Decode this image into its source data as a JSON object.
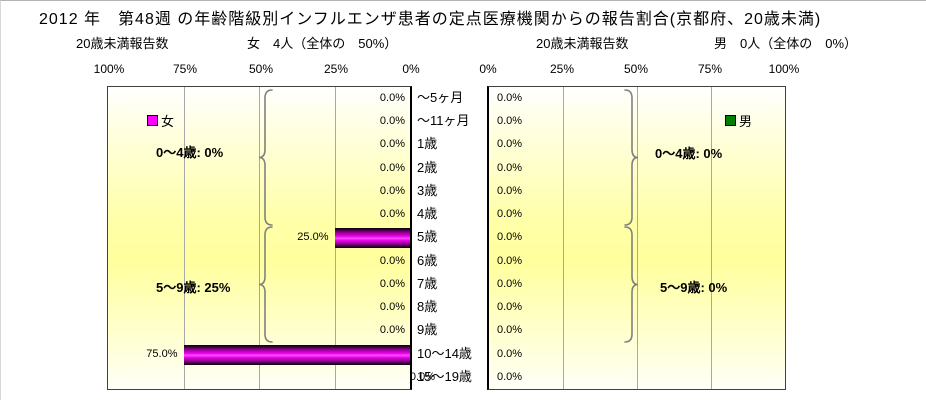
{
  "title": "2012 年　第48週 の年齢階級別インフルエンザ患者の定点医療機関からの報告割合(京都府、20歳未満)",
  "header": {
    "left_count_label": "20歳未満報告数",
    "left_summary": "女　4人（全体の　50%）",
    "right_count_label": "20歳未満報告数",
    "right_summary": "男　0人（全体の　0%）"
  },
  "legend": {
    "female_label": "女",
    "female_color": "#ff00ff",
    "male_label": "男",
    "male_color": "#008000"
  },
  "axes": {
    "left_ticks": [
      "100%",
      "75%",
      "50%",
      "25%",
      "0%"
    ],
    "right_ticks": [
      "0%",
      "25%",
      "50%",
      "75%",
      "100%"
    ]
  },
  "groups": {
    "female_0_4": "0～4歳:  0%",
    "female_5_9": "5～9歳:  25%",
    "male_0_4": "0～4歳:  0%",
    "male_5_9": "5～9歳:  0%"
  },
  "chart_data": {
    "type": "bar",
    "layout": "population-pyramid-horizontal",
    "title": "2012 年　第48週 の年齢階級別インフルエンザ患者の定点医療機関からの報告割合(京都府、20歳未満)",
    "categories": [
      "～5ヶ月",
      "～11ヶ月",
      "1歳",
      "2歳",
      "3歳",
      "4歳",
      "5歳",
      "6歳",
      "7歳",
      "8歳",
      "9歳",
      "10～14歳",
      "15～19歳"
    ],
    "series": [
      {
        "name": "女",
        "side": "left",
        "color": "#ff00ff",
        "count_text": "4人",
        "share_text": "50%",
        "values": [
          0,
          0,
          0,
          0,
          0,
          0,
          25,
          0,
          0,
          0,
          0,
          75,
          0
        ]
      },
      {
        "name": "男",
        "side": "right",
        "color": "#008000",
        "count_text": "0人",
        "share_text": "0%",
        "values": [
          0,
          0,
          0,
          0,
          0,
          0,
          0,
          0,
          0,
          0,
          0,
          0,
          0
        ]
      }
    ],
    "xlim": [
      0,
      100
    ],
    "tick_step": 25,
    "grid": true,
    "value_label_format": "0.0%",
    "group_annotations": [
      {
        "side": "left",
        "rows": "0-5",
        "label": "0～4歳:  0%"
      },
      {
        "side": "left",
        "rows": "6-10",
        "label": "5～9歳:  25%"
      },
      {
        "side": "right",
        "rows": "0-5",
        "label": "0～4歳:  0%"
      },
      {
        "side": "right",
        "rows": "6-10",
        "label": "5～9歳:  0%"
      }
    ]
  }
}
